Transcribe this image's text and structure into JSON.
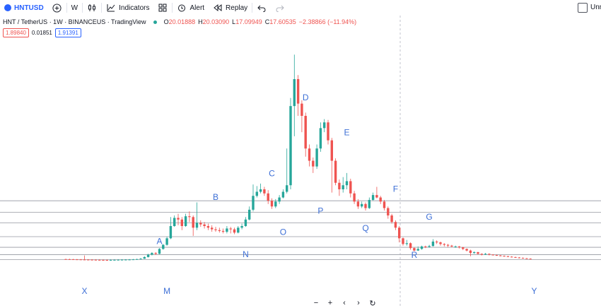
{
  "toolbar": {
    "symbol": "HNTUSD",
    "interval": "W",
    "indicators_label": "Indicators",
    "alert_label": "Alert",
    "replay_label": "Replay",
    "right_label": "Unn"
  },
  "legend": {
    "title": "HNT / TetherUS · 1W · BINANCEUS · TradingView",
    "open_label": "O",
    "open": "20.01888",
    "high_label": "H",
    "high": "20.03090",
    "low_label": "L",
    "low": "17.09949",
    "close_label": "C",
    "close": "17.60535",
    "change": "−2.38866 (−11.94%)"
  },
  "prices": {
    "bid": "1.89840",
    "spread": "0.01851",
    "ask": "1.91391"
  },
  "colors": {
    "up": "#26a69a",
    "down": "#ef5350",
    "accent": "#2962ff",
    "label": "#3d6fd6"
  },
  "chart_data": {
    "type": "candlestick",
    "candles": [
      [
        0.45,
        0.44,
        0.5,
        0.4
      ],
      [
        0.44,
        0.43,
        0.5,
        0.38
      ],
      [
        0.43,
        0.42,
        0.48,
        0.37
      ],
      [
        0.42,
        0.41,
        0.47,
        0.37
      ],
      [
        0.41,
        0.4,
        0.46,
        0.35
      ],
      [
        0.4,
        0.39,
        0.9,
        0.34
      ],
      [
        0.39,
        0.38,
        0.44,
        0.33
      ],
      [
        0.38,
        0.37,
        0.43,
        0.32
      ],
      [
        0.37,
        0.36,
        0.42,
        0.31
      ],
      [
        0.36,
        0.35,
        0.41,
        0.3
      ],
      [
        0.35,
        0.34,
        0.4,
        0.29
      ],
      [
        0.34,
        0.33,
        0.39,
        0.28
      ],
      [
        0.33,
        0.35,
        0.4,
        0.29
      ],
      [
        0.35,
        0.36,
        0.41,
        0.3
      ],
      [
        0.36,
        0.37,
        0.42,
        0.31
      ],
      [
        0.37,
        0.38,
        0.43,
        0.32
      ],
      [
        0.38,
        0.39,
        0.44,
        0.33
      ],
      [
        0.39,
        0.4,
        0.45,
        0.34
      ],
      [
        0.4,
        0.42,
        0.47,
        0.36
      ],
      [
        0.42,
        0.45,
        0.5,
        0.39
      ],
      [
        0.45,
        0.5,
        0.6,
        0.44
      ],
      [
        0.5,
        0.7,
        0.8,
        0.48
      ],
      [
        0.7,
        1.0,
        1.1,
        0.65
      ],
      [
        1.0,
        1.2,
        1.3,
        0.9
      ],
      [
        1.2,
        1.1,
        1.3,
        0.95
      ],
      [
        1.1,
        1.7,
        1.8,
        1.05
      ],
      [
        1.7,
        2.2,
        2.3,
        1.6
      ],
      [
        2.2,
        3.0,
        3.2,
        2.1
      ],
      [
        3.0,
        4.5,
        5.6,
        2.9
      ],
      [
        4.5,
        5.5,
        5.8,
        4.4
      ],
      [
        5.5,
        5.3,
        6.0,
        4.6
      ],
      [
        5.3,
        4.5,
        5.6,
        4.0
      ],
      [
        4.5,
        5.7,
        6.0,
        4.4
      ],
      [
        5.7,
        5.6,
        6.3,
        5.0
      ],
      [
        5.6,
        4.3,
        5.8,
        3.3
      ],
      [
        4.3,
        4.9,
        7.4,
        4.0
      ],
      [
        4.9,
        4.7,
        5.2,
        4.4
      ],
      [
        4.7,
        4.5,
        5.0,
        4.2
      ],
      [
        4.5,
        4.3,
        4.8,
        4.0
      ],
      [
        4.3,
        4.1,
        4.6,
        3.8
      ],
      [
        4.1,
        4.0,
        4.4,
        3.8
      ],
      [
        4.0,
        3.9,
        4.3,
        3.7
      ],
      [
        3.9,
        3.8,
        4.2,
        3.6
      ],
      [
        3.8,
        4.2,
        4.5,
        3.6
      ],
      [
        4.2,
        4.1,
        4.4,
        3.6
      ],
      [
        4.1,
        3.7,
        4.3,
        3.5
      ],
      [
        3.7,
        4.3,
        4.5,
        3.6
      ],
      [
        4.3,
        4.5,
        4.8,
        4.1
      ],
      [
        4.5,
        5.3,
        5.6,
        4.4
      ],
      [
        5.3,
        6.5,
        6.9,
        5.2
      ],
      [
        6.5,
        8.2,
        9.6,
        6.3
      ],
      [
        8.2,
        8.7,
        9.4,
        8.0
      ],
      [
        8.7,
        9.0,
        9.7,
        8.5
      ],
      [
        9.0,
        8.5,
        9.3,
        8.2
      ],
      [
        8.5,
        7.6,
        8.9,
        7.2
      ],
      [
        7.6,
        6.9,
        7.9,
        6.6
      ],
      [
        6.9,
        7.5,
        7.8,
        6.7
      ],
      [
        7.5,
        8.0,
        8.3,
        7.2
      ],
      [
        8.0,
        8.7,
        9.0,
        7.9
      ],
      [
        8.7,
        9.5,
        14.0,
        8.5
      ],
      [
        9.5,
        19.2,
        20.2,
        9.0
      ],
      [
        19.2,
        22.5,
        25.5,
        15.5
      ],
      [
        22.5,
        19.5,
        23.0,
        18.0
      ],
      [
        19.5,
        18.0,
        19.9,
        16.0
      ],
      [
        18.0,
        14.0,
        18.4,
        13.0
      ],
      [
        14.0,
        12.5,
        14.5,
        11.8
      ],
      [
        12.5,
        11.8,
        12.9,
        11.0
      ],
      [
        11.8,
        14.0,
        14.5,
        11.5
      ],
      [
        14.0,
        16.5,
        17.2,
        13.6
      ],
      [
        16.5,
        17.2,
        17.6,
        16.0
      ],
      [
        17.2,
        15.0,
        17.5,
        14.5
      ],
      [
        15.0,
        12.5,
        15.3,
        8.6
      ],
      [
        12.5,
        9.8,
        12.8,
        9.5
      ],
      [
        9.8,
        9.0,
        10.2,
        8.2
      ],
      [
        9.0,
        9.5,
        10.5,
        8.6
      ],
      [
        9.5,
        10.0,
        11.0,
        9.0
      ],
      [
        10.0,
        8.5,
        10.3,
        8.0
      ],
      [
        8.5,
        7.5,
        8.8,
        7.2
      ],
      [
        7.5,
        6.9,
        7.8,
        6.6
      ],
      [
        6.9,
        7.2,
        7.5,
        6.7
      ],
      [
        7.2,
        6.7,
        7.4,
        6.4
      ],
      [
        6.7,
        7.7,
        8.0,
        6.6
      ],
      [
        7.7,
        8.3,
        8.6,
        7.6
      ],
      [
        8.3,
        8.0,
        9.3,
        7.9
      ],
      [
        8.0,
        7.5,
        8.2,
        7.2
      ],
      [
        7.5,
        6.7,
        7.7,
        6.4
      ],
      [
        6.7,
        5.8,
        6.9,
        5.4
      ],
      [
        5.8,
        5.0,
        6.0,
        4.8
      ],
      [
        5.0,
        4.3,
        5.2,
        4.0
      ],
      [
        4.3,
        3.0,
        4.5,
        2.5
      ],
      [
        3.0,
        2.3,
        3.1,
        2.1
      ],
      [
        2.3,
        2.4,
        2.8,
        2.1
      ],
      [
        2.4,
        1.8,
        2.5,
        1.6
      ],
      [
        1.8,
        1.5,
        1.9,
        1.4
      ],
      [
        1.5,
        1.7,
        2.0,
        1.45
      ],
      [
        1.7,
        2.0,
        2.1,
        1.6
      ],
      [
        2.0,
        1.95,
        2.1,
        1.8
      ],
      [
        1.95,
        2.05,
        2.2,
        1.85
      ],
      [
        2.05,
        2.6,
        2.9,
        2.0
      ],
      [
        2.6,
        2.5,
        2.75,
        2.3
      ],
      [
        2.5,
        2.3,
        2.6,
        2.1
      ],
      [
        2.3,
        2.2,
        2.4,
        2.0
      ],
      [
        2.2,
        2.1,
        2.3,
        1.9
      ],
      [
        2.1,
        2.0,
        2.2,
        1.9
      ],
      [
        2.0,
        2.0,
        2.1,
        1.85
      ],
      [
        2.0,
        1.9,
        2.05,
        1.75
      ],
      [
        1.9,
        1.7,
        1.95,
        1.55
      ],
      [
        1.7,
        1.5,
        1.75,
        1.4
      ],
      [
        1.5,
        1.2,
        1.6,
        0.8
      ],
      [
        1.2,
        1.3,
        1.4,
        1.1
      ],
      [
        1.3,
        1.1,
        1.35,
        1.0
      ],
      [
        1.1,
        1.0,
        1.15,
        0.9
      ],
      [
        1.0,
        1.1,
        1.2,
        0.95
      ],
      [
        1.1,
        1.0,
        1.15,
        0.9
      ],
      [
        1.0,
        0.95,
        1.05,
        0.9
      ],
      [
        0.95,
        0.9,
        1.0,
        0.85
      ],
      [
        0.9,
        0.85,
        0.95,
        0.8
      ],
      [
        0.85,
        0.8,
        0.9,
        0.75
      ],
      [
        0.8,
        0.75,
        0.85,
        0.7
      ],
      [
        0.75,
        0.7,
        0.8,
        0.65
      ],
      [
        0.7,
        0.65,
        0.75,
        0.6
      ],
      [
        0.65,
        0.6,
        0.7,
        0.55
      ],
      [
        0.6,
        0.55,
        0.65,
        0.52
      ],
      [
        0.55,
        0.5,
        0.6,
        0.48
      ],
      [
        0.5,
        0.45,
        0.55,
        0.42
      ]
    ],
    "horizontal_levels": [
      0.4,
      1.0,
      1.9,
      3.2,
      4.9,
      6.2,
      7.6
    ],
    "annotations": [
      "X",
      "M",
      "A",
      "N",
      "B",
      "O",
      "C",
      "D",
      "P",
      "E",
      "Q",
      "F",
      "R",
      "G",
      "Y"
    ]
  }
}
